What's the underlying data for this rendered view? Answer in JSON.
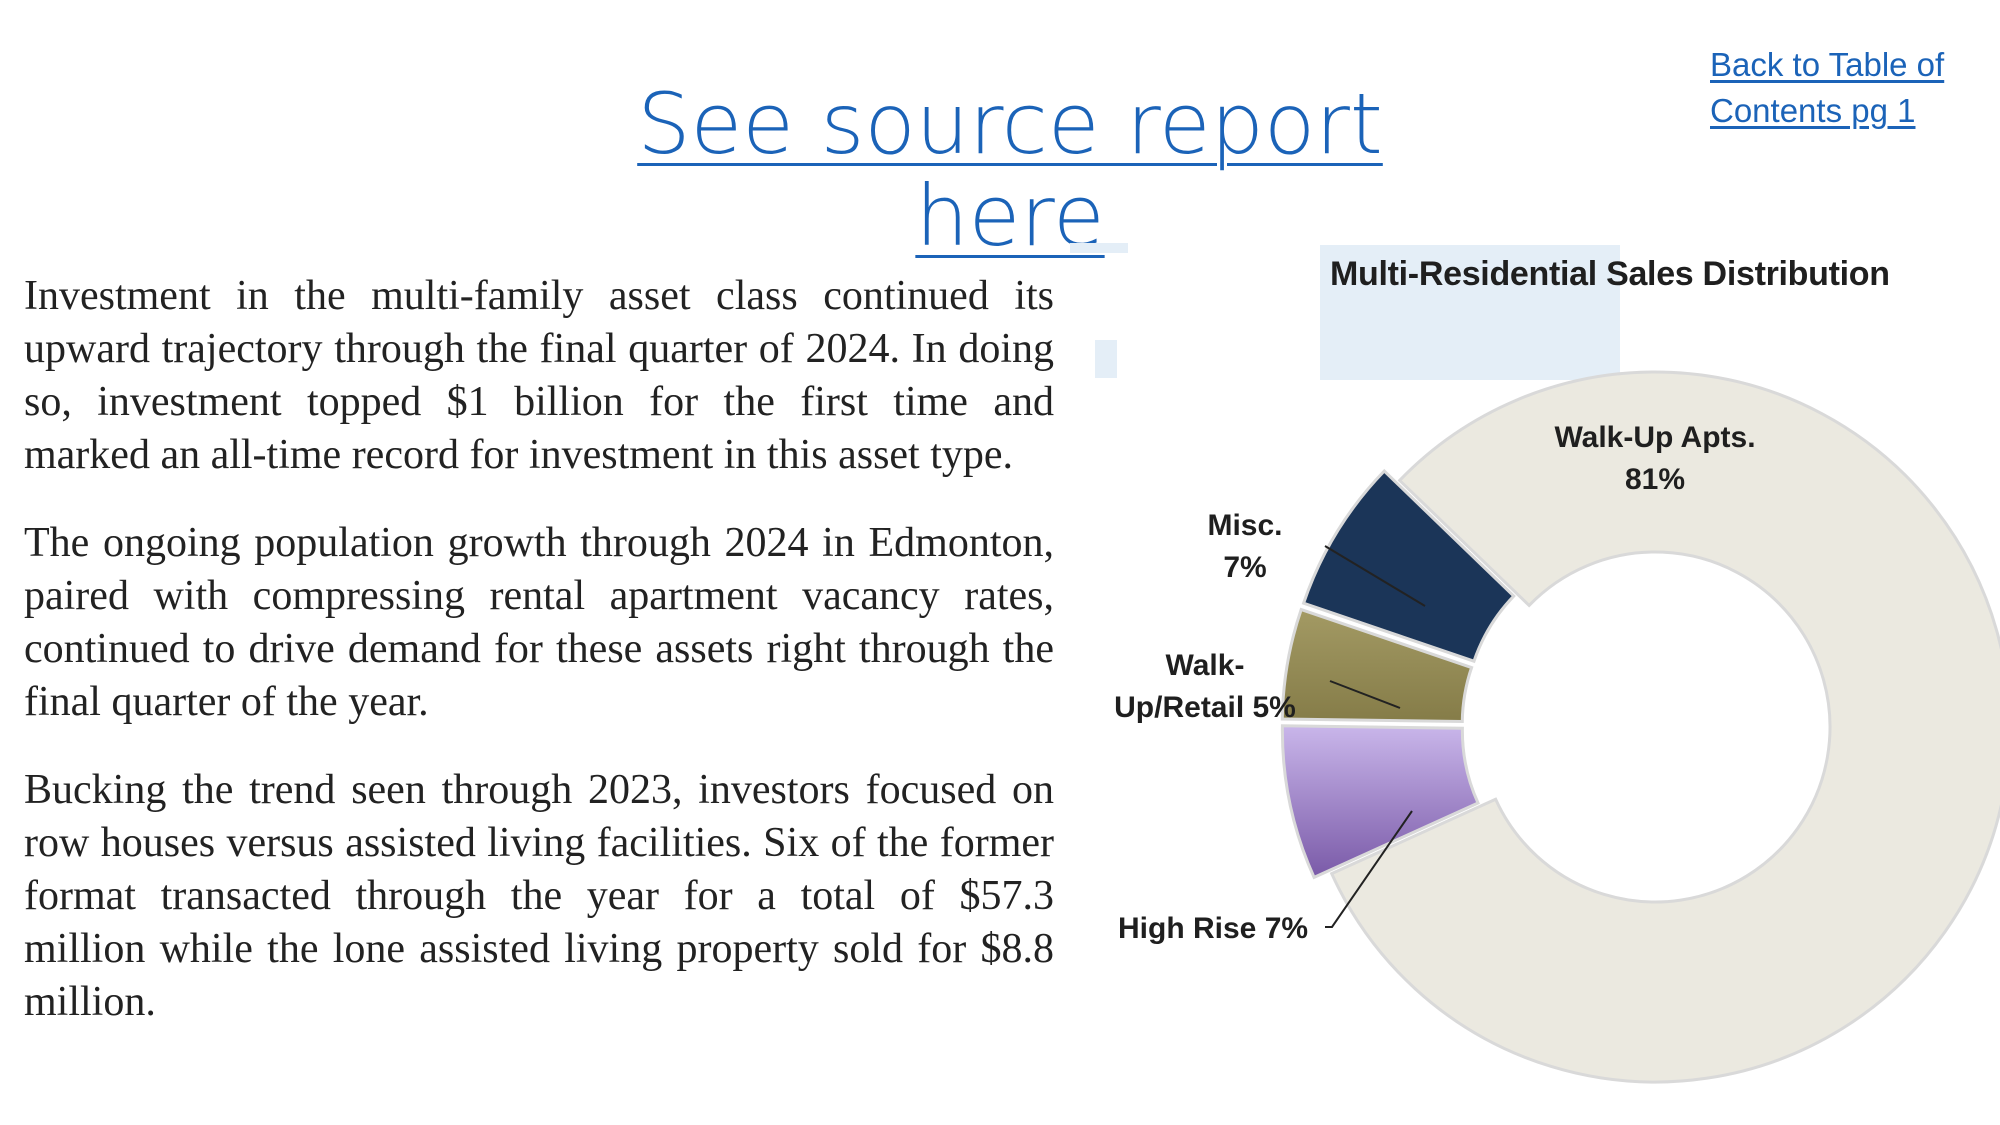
{
  "header": {
    "source_link": "See source report here",
    "toc_link_line1": "Back to Table of",
    "toc_link_line2": "Contents pg 1"
  },
  "body": {
    "paragraphs": [
      "Investment in the multi-family asset class continued its upward trajectory through the final quarter of 2024. In doing so, investment topped $1 billion for the first time and marked an all-time record for investment in this asset type.",
      "The ongoing population growth through 2024 in Edmonton, paired with compressing rental apartment vacancy rates, continued to drive demand for these assets right through the final quarter of the year.",
      "Bucking the trend seen through 2023, investors focused on row houses versus assisted living facilities.  Six of the former format transacted through the year for a total of $57.3 million while the lone assisted living property sold for $8.8 million."
    ]
  },
  "chart_data": {
    "type": "pie",
    "title": "Multi-Residential Sales Distribution",
    "slices": [
      {
        "name": "Walk-Up Apts.",
        "value": 81,
        "color": "#ebe9e0",
        "label_line1": "Walk-Up Apts.",
        "label_line2": "81%"
      },
      {
        "name": "Misc.",
        "value": 7,
        "color": "#9b7fcf",
        "label_line1": "Misc.",
        "label_line2": "7%"
      },
      {
        "name": "Walk-Up/Retail",
        "value": 5,
        "color": "#958b55",
        "label_line1": "Walk-",
        "label_line2": "Up/Retail 5%"
      },
      {
        "name": "High Rise",
        "value": 7,
        "color": "#1e3a5f",
        "label_line1": "High Rise 7%",
        "label_line2": ""
      }
    ],
    "donut": true
  }
}
